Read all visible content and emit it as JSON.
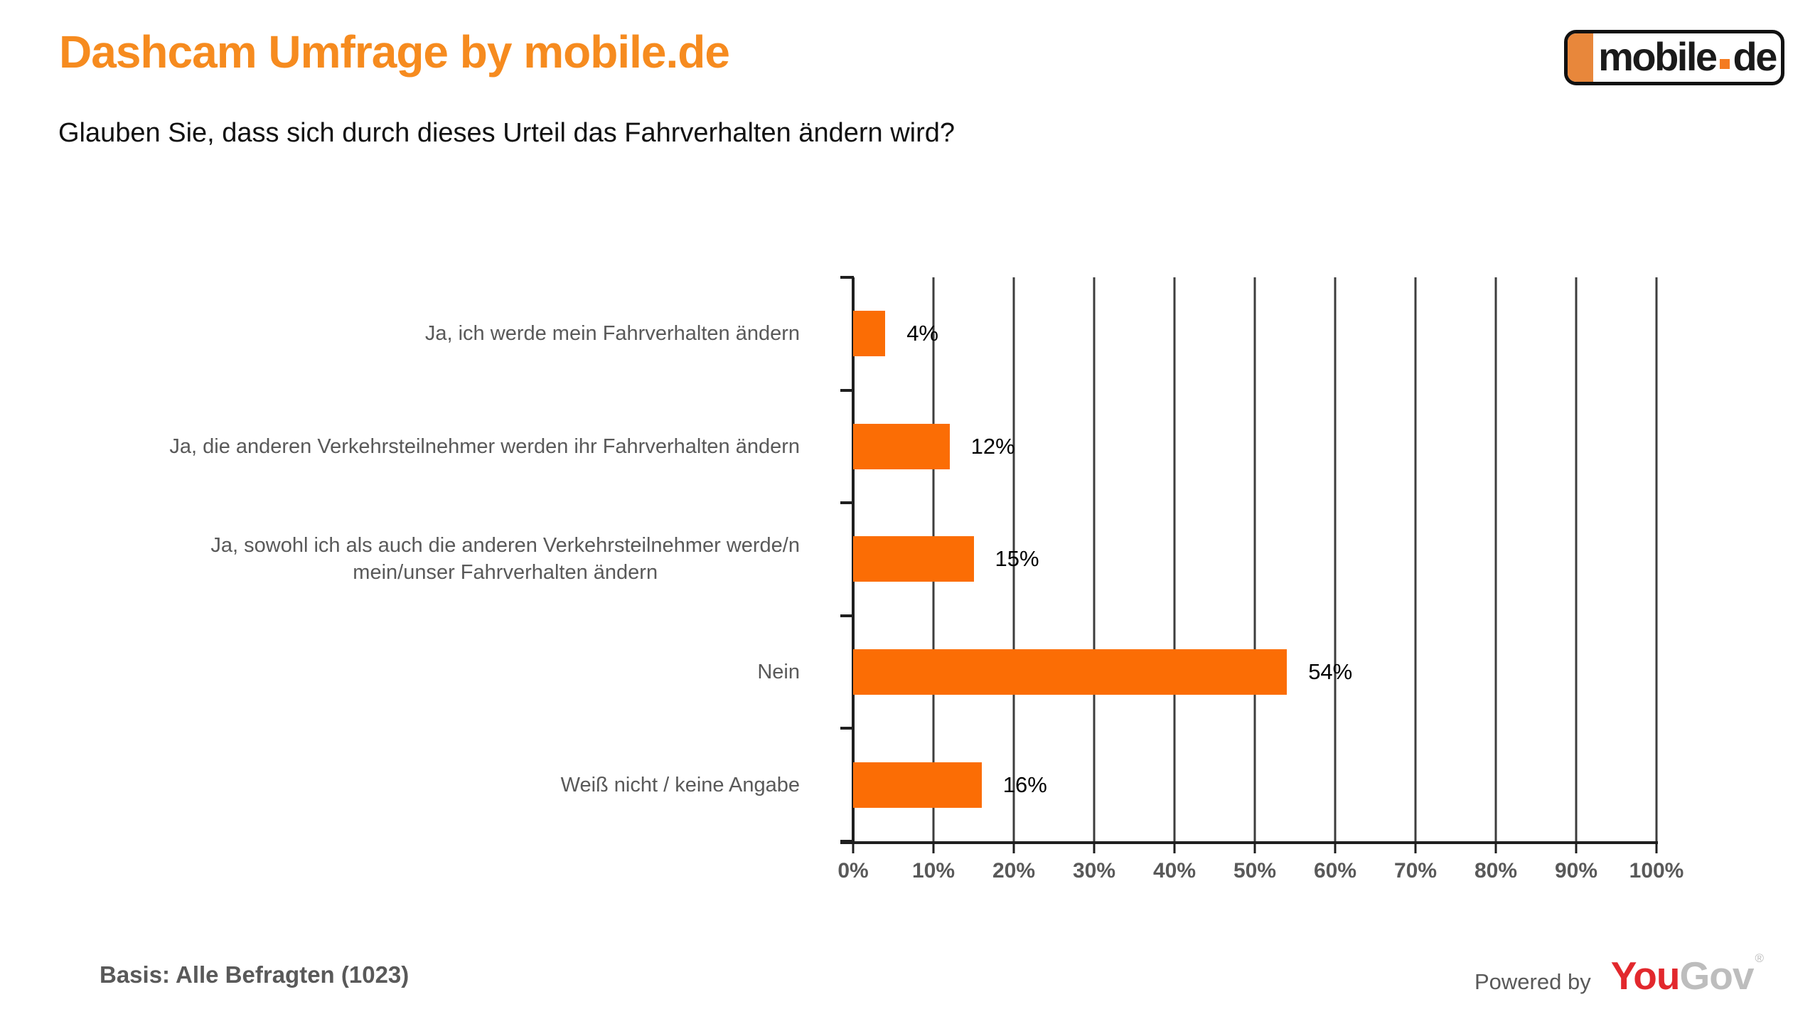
{
  "colors": {
    "title": "#F68B1F",
    "bar": "#FB6D05",
    "label_gray": "#595959",
    "gridline": "#3D3D3D",
    "axis": "#1F1F1F",
    "yougov_red": "#E2282D",
    "yougov_gray": "#BDBDBD",
    "logo_block_orange": "#E8873B",
    "logo_dot_orange": "#F47B20"
  },
  "header": {
    "title": "Dashcam Umfrage by mobile.de",
    "question": "Glauben Sie, dass sich durch dieses Urteil das Fahrverhalten ändern wird?"
  },
  "logo": {
    "text_main": "mobile",
    "text_suffix": "de"
  },
  "chart_data": {
    "type": "bar",
    "orientation": "horizontal",
    "title": "Glauben Sie, dass sich durch dieses Urteil das Fahrverhalten ändern wird?",
    "categories": [
      "Ja, ich werde mein Fahrverhalten ändern",
      "Ja, die anderen Verkehrsteilnehmer werden ihr Fahrverhalten ändern",
      "Ja, sowohl ich als auch die anderen Verkehrsteilnehmer werde/n\nmein/unser Fahrverhalten ändern",
      "Nein",
      "Weiß nicht / keine Angabe"
    ],
    "values": [
      4,
      12,
      15,
      54,
      16
    ],
    "value_labels": [
      "4%",
      "12%",
      "15%",
      "54%",
      "16%"
    ],
    "xlabel": "",
    "ylabel": "",
    "xlim": [
      0,
      100
    ],
    "x_tick_step": 10,
    "x_tick_labels": [
      "0%",
      "10%",
      "20%",
      "30%",
      "40%",
      "50%",
      "60%",
      "70%",
      "80%",
      "90%",
      "100%"
    ],
    "grid": "vertical",
    "legend": "none",
    "bar_color": "#FB6D05"
  },
  "footer": {
    "basis": "Basis: Alle Befragten (1023)",
    "powered_by": "Powered by",
    "yougov": {
      "you": "You",
      "gov": "Gov",
      "registered": "®"
    }
  }
}
